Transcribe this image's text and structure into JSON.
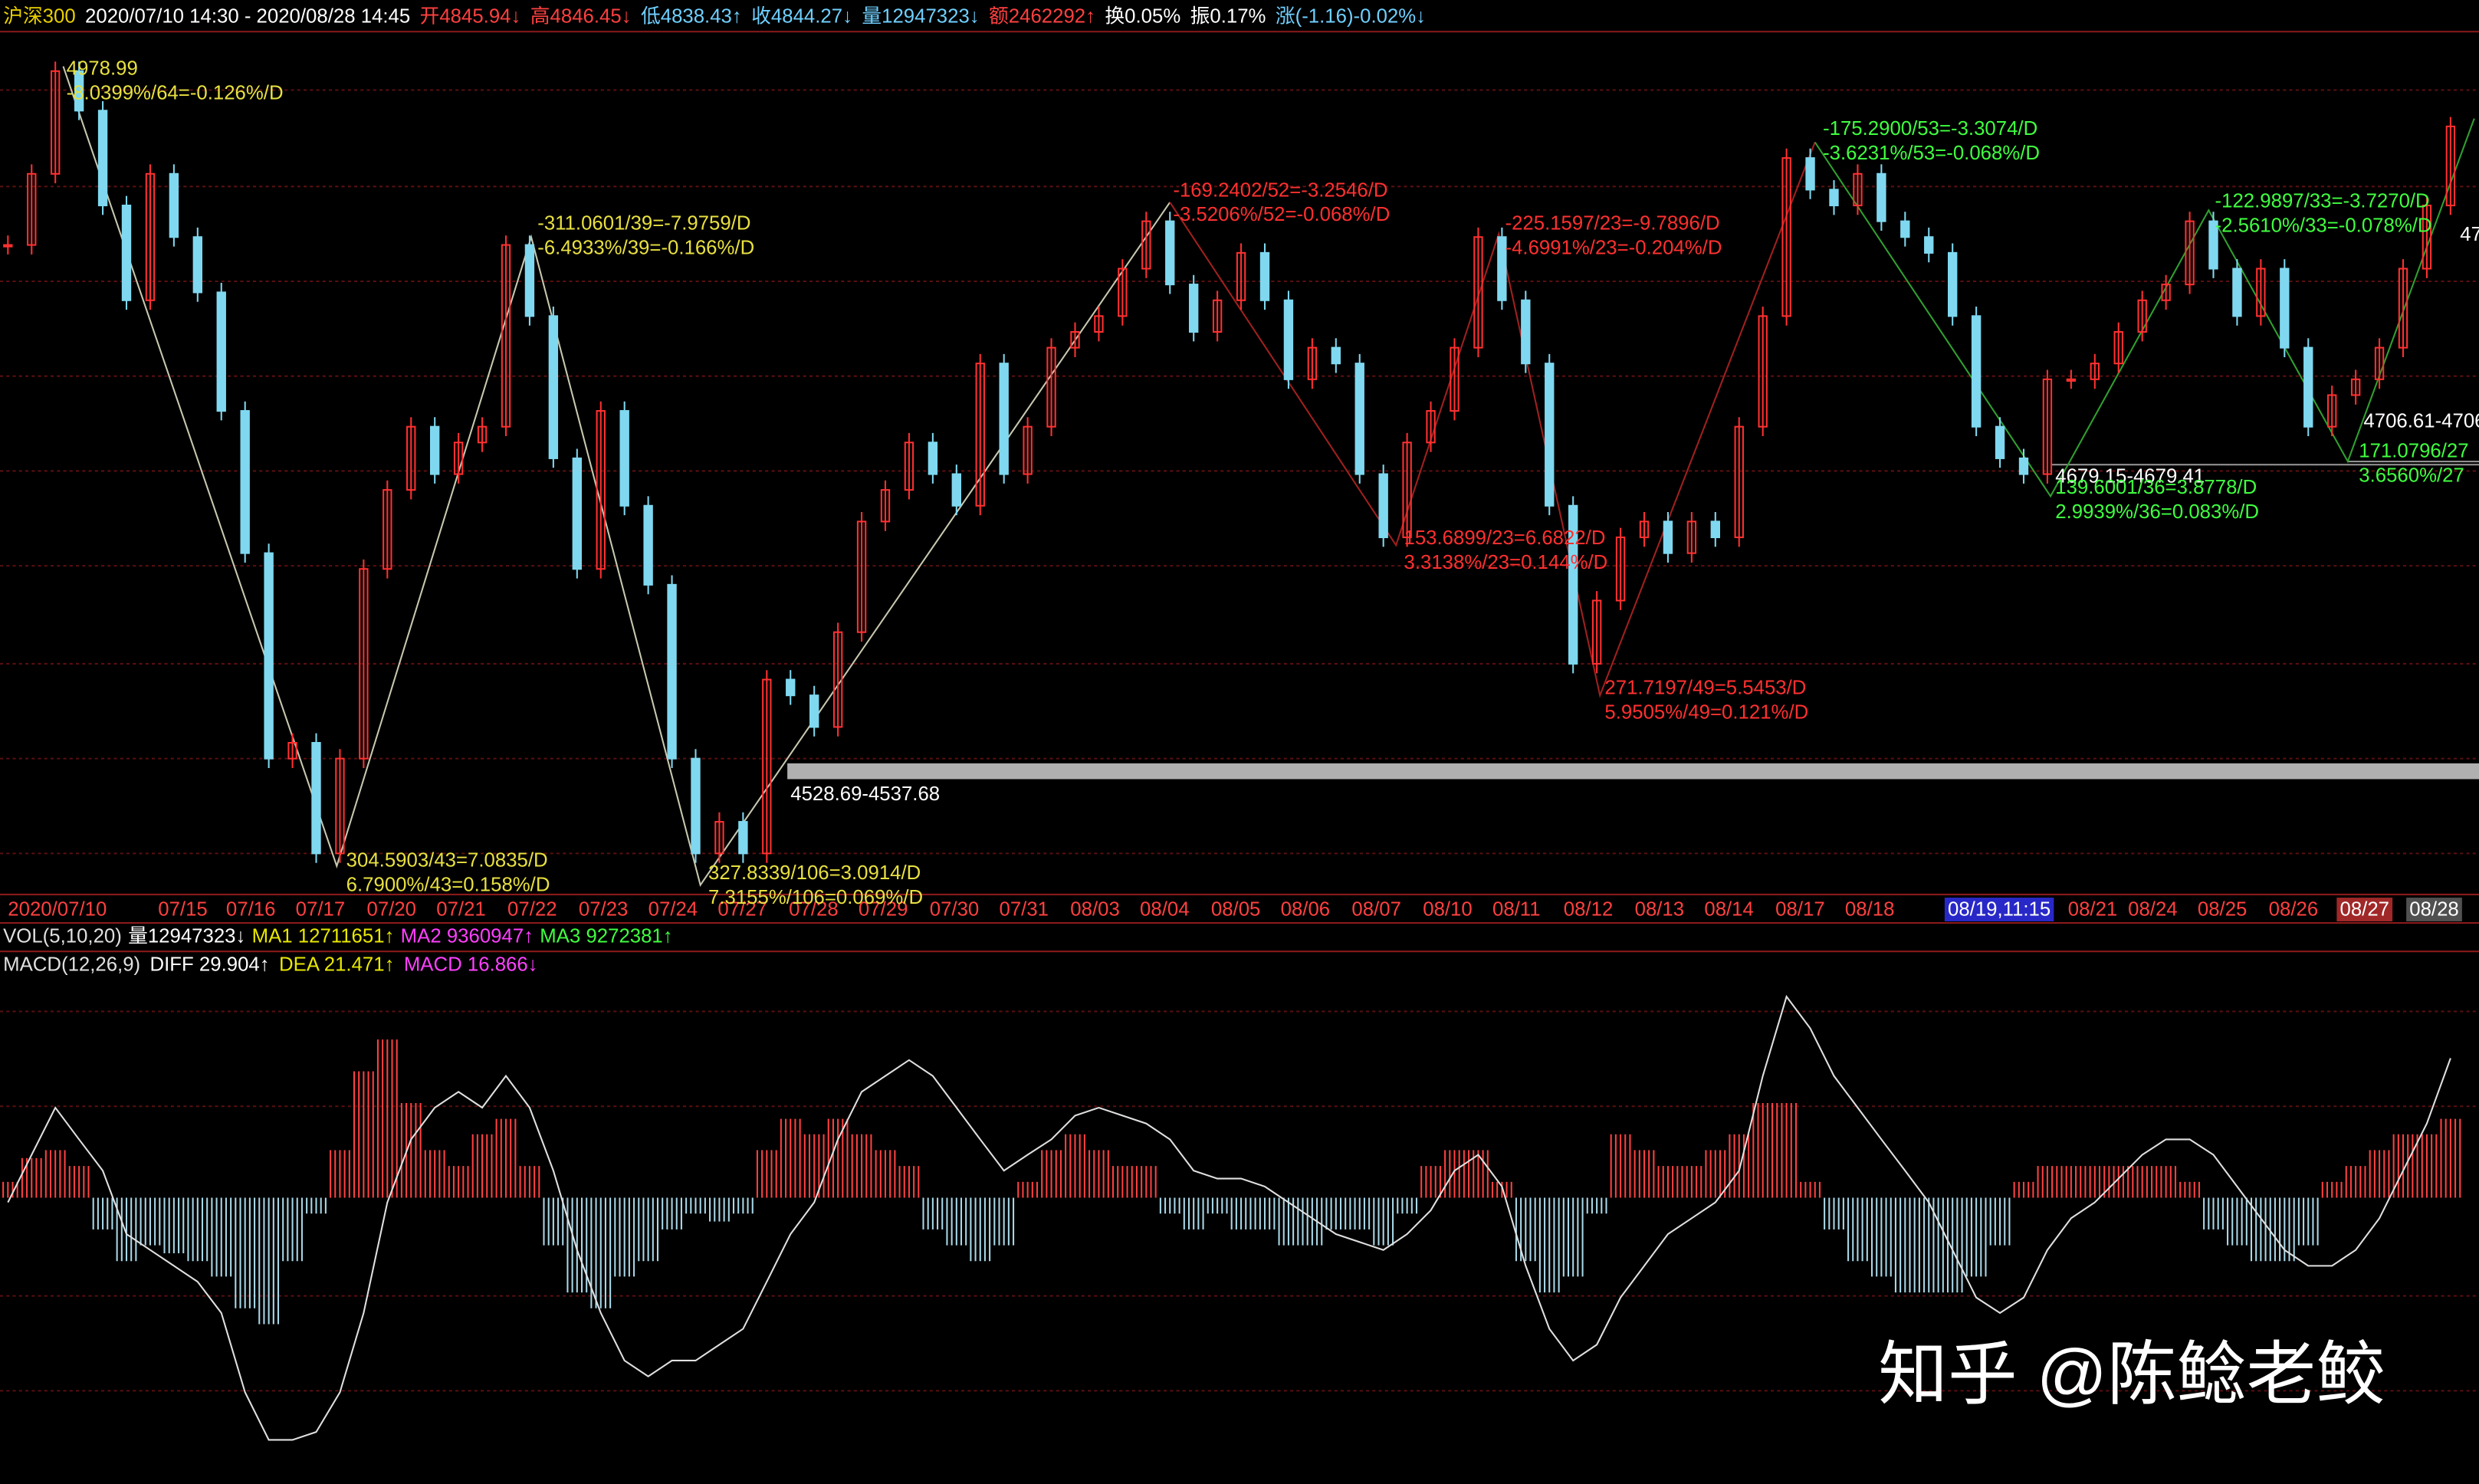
{
  "header": [
    {
      "text": "沪深300",
      "color": "#e8d000"
    },
    {
      "text": "2020/07/10 14:30 - 2020/08/28 14:45",
      "color": "#ffffff"
    },
    {
      "text": "开4845.94↓",
      "color": "#ff4040"
    },
    {
      "text": "高4846.45↓",
      "color": "#ff4040"
    },
    {
      "text": "低4838.43↑",
      "color": "#6fd0ff"
    },
    {
      "text": "收4844.27↓",
      "color": "#6fd0ff"
    },
    {
      "text": "量12947323↓",
      "color": "#6fd0ff"
    },
    {
      "text": "额2462292↑",
      "color": "#ff4040"
    },
    {
      "text": "换0.05%",
      "color": "#ffffff"
    },
    {
      "text": "振0.17%",
      "color": "#ffffff"
    },
    {
      "text": "涨(-1.16)-0.02%↓",
      "color": "#6fd0ff"
    }
  ],
  "chart_data": {
    "type": "candlestick",
    "ylim": [
      4445,
      5000
    ],
    "up_color": "#ff3030",
    "down_color": "#7fd8f0",
    "closes": [
      4855,
      4900,
      4965,
      4940,
      4880,
      4820,
      4900,
      4860,
      4825,
      4750,
      4660,
      4530,
      4540,
      4470,
      4530,
      4650,
      4700,
      4740,
      4710,
      4730,
      4740,
      4855,
      4810,
      4720,
      4650,
      4750,
      4690,
      4640,
      4530,
      4470,
      4490,
      4470,
      4580,
      4570,
      4550,
      4610,
      4680,
      4700,
      4730,
      4710,
      4690,
      4780,
      4710,
      4740,
      4790,
      4800,
      4810,
      4840,
      4870,
      4830,
      4800,
      4820,
      4850,
      4820,
      4770,
      4790,
      4780,
      4710,
      4670,
      4730,
      4750,
      4790,
      4860,
      4820,
      4780,
      4690,
      4590,
      4630,
      4670,
      4680,
      4660,
      4680,
      4670,
      4740,
      4810,
      4910,
      4890,
      4880,
      4900,
      4870,
      4860,
      4850,
      4810,
      4740,
      4720,
      4710,
      4770,
      4770,
      4780,
      4800,
      4820,
      4830,
      4870,
      4840,
      4810,
      4840,
      4790,
      4740,
      4760,
      4770,
      4790,
      4840,
      4880,
      4930
    ],
    "x_labels": [
      {
        "text": "2020/07/10"
      },
      {
        "text": "07/15"
      },
      {
        "text": "07/16"
      },
      {
        "text": "07/17"
      },
      {
        "text": "07/20"
      },
      {
        "text": "07/21"
      },
      {
        "text": "07/22"
      },
      {
        "text": "07/23"
      },
      {
        "text": "07/24"
      },
      {
        "text": "07/27"
      },
      {
        "text": "07/28"
      },
      {
        "text": "07/29"
      },
      {
        "text": "07/30"
      },
      {
        "text": "07/31"
      },
      {
        "text": "08/03"
      },
      {
        "text": "08/04"
      },
      {
        "text": "08/05"
      },
      {
        "text": "08/06"
      },
      {
        "text": "08/07"
      },
      {
        "text": "08/10"
      },
      {
        "text": "08/11"
      },
      {
        "text": "08/12"
      },
      {
        "text": "08/13"
      },
      {
        "text": "08/14"
      },
      {
        "text": "08/17"
      },
      {
        "text": "08/18"
      },
      {
        "text": "08/19,11:15",
        "bg": "#2828c8"
      },
      {
        "text": "08/21"
      },
      {
        "text": "08/24"
      },
      {
        "text": "08/25"
      },
      {
        "text": "08/26"
      },
      {
        "text": "08/27",
        "bg": "#a02828"
      },
      {
        "text": "08/28",
        "bg": "#505050"
      }
    ],
    "macd_panel": {
      "ylim": [
        -60,
        45
      ],
      "diff_color": "#e0e0e0",
      "pos_color": "#ff4040",
      "neg_color": "#a8d8e8",
      "diff": [
        -1.0,
        9.2,
        19.3,
        12.5,
        5.8,
        -7.8,
        -11.2,
        -14.6,
        -18.0,
        -24.7,
        -41.7,
        -51.9,
        -51.9,
        -50.2,
        -41.7,
        -24.7,
        -1.0,
        12.5,
        19.3,
        22.7,
        19.3,
        26.1,
        19.3,
        5.8,
        -11.2,
        -24.7,
        -34.9,
        -38.3,
        -34.9,
        -34.9,
        -31.5,
        -28.1,
        -18.0,
        -7.8,
        -1.0,
        12.5,
        22.7,
        26.1,
        29.5,
        26.1,
        19.3,
        12.5,
        5.8,
        9.2,
        12.5,
        17.6,
        19.3,
        17.6,
        15.9,
        12.5,
        5.8,
        4.1,
        4.1,
        2.4,
        -1.0,
        -4.4,
        -7.8,
        -9.5,
        -11.2,
        -7.8,
        -2.7,
        5.8,
        9.2,
        2.4,
        -14.6,
        -28.1,
        -34.9,
        -31.5,
        -21.4,
        -14.6,
        -7.8,
        -4.4,
        -1.0,
        5.8,
        26.1,
        43.1,
        36.3,
        26.1,
        19.3,
        12.5,
        5.8,
        -1.0,
        -11.2,
        -21.4,
        -24.7,
        -21.4,
        -11.2,
        -4.4,
        -1.0,
        4.1,
        9.2,
        12.5,
        12.5,
        9.2,
        2.4,
        -4.4,
        -11.2,
        -14.6,
        -14.6,
        -11.2,
        -4.4,
        5.8,
        15.9,
        29.9
      ],
      "macd": [
        3.4,
        8.5,
        10.2,
        6.8,
        -6.8,
        -13.6,
        -10.2,
        -11.9,
        -13.6,
        -16.9,
        -23.7,
        -27.1,
        -13.6,
        -3.4,
        10.2,
        27.1,
        33.9,
        20.3,
        10.2,
        6.8,
        13.6,
        16.9,
        6.8,
        -10.2,
        -20.3,
        -23.7,
        -16.9,
        -13.6,
        -6.8,
        -3.4,
        -5.1,
        -3.4,
        10.2,
        16.9,
        13.6,
        16.9,
        13.6,
        10.2,
        6.8,
        -6.8,
        -10.2,
        -13.6,
        -10.2,
        3.4,
        10.2,
        13.6,
        10.2,
        6.8,
        6.8,
        -3.4,
        -6.8,
        -3.4,
        -6.8,
        -6.8,
        -10.2,
        -10.2,
        -6.8,
        -6.8,
        -10.2,
        -3.4,
        6.8,
        10.2,
        10.2,
        3.4,
        -13.6,
        -20.3,
        -16.9,
        -3.4,
        13.6,
        10.2,
        6.8,
        6.8,
        10.2,
        13.6,
        20.3,
        20.3,
        3.4,
        -6.8,
        -13.6,
        -16.9,
        -20.3,
        -20.3,
        -20.3,
        -16.9,
        -10.2,
        3.4,
        6.8,
        6.8,
        6.8,
        6.8,
        6.8,
        6.8,
        3.4,
        -6.8,
        -10.2,
        -13.6,
        -13.6,
        -10.2,
        3.4,
        6.8,
        10.2,
        13.6,
        13.6,
        16.9
      ]
    }
  },
  "vol_legend": [
    {
      "text": "VOL(5,10,20)",
      "color": "#e0e0e0"
    },
    {
      "text": "量12947323↓",
      "color": "#ffffff"
    },
    {
      "text": "MA1 12711651↑",
      "color": "#e8e800"
    },
    {
      "text": "MA2 9360947↑",
      "color": "#ff40ff"
    },
    {
      "text": "MA3 9272381↑",
      "color": "#40ff40"
    }
  ],
  "macd_legend": [
    {
      "text": "MACD(12,26,9)",
      "color": "#e0e0e0"
    },
    {
      "text": "DIFF 29.904↑",
      "color": "#ffffff"
    },
    {
      "text": "DEA 21.471↑",
      "color": "#e8e800"
    },
    {
      "text": "MACD 16.866↓",
      "color": "#ff40ff"
    }
  ],
  "annotations": [
    {
      "lines": [
        "4978.99",
        "-8.0399%/64=-0.126%/D"
      ],
      "color": "#e8e040"
    },
    {
      "lines": [
        "-311.0601/39=-7.9759/D",
        "-6.4933%/39=-0.166%/D"
      ],
      "color": "#e8e040"
    },
    {
      "lines": [
        "304.5903/43=7.0835/D",
        "6.7900%/43=0.158%/D"
      ],
      "color": "#e8e040"
    },
    {
      "lines": [
        "327.8339/106=3.0914/D",
        "7.3155%/106=0.069%/D"
      ],
      "color": "#e8e040"
    },
    {
      "lines": [
        "4528.69-4537.68"
      ],
      "color": "#ffffff"
    },
    {
      "lines": [
        "-169.2402/52=-3.2546/D",
        "-3.5206%/52=-0.068%/D"
      ],
      "color": "#ff3030"
    },
    {
      "lines": [
        "153.6899/23=6.6822/D",
        "3.3138%/23=0.144%/D"
      ],
      "color": "#ff3030"
    },
    {
      "lines": [
        "-225.1597/23=-9.7896/D",
        "-4.6991%/23=-0.204%/D"
      ],
      "color": "#ff3030"
    },
    {
      "lines": [
        "271.7197/49=5.5453/D",
        "5.9505%/49=0.121%/D"
      ],
      "color": "#ff3030"
    },
    {
      "lines": [
        "-175.2900/53=-3.3074/D",
        "-3.6231%/53=-0.068%/D"
      ],
      "color": "#40ff40"
    },
    {
      "lines": [
        "4679.15-4679.41"
      ],
      "color": "#ffffff"
    },
    {
      "lines": [
        "139.6001/36=3.8778/D",
        "2.9939%/36=0.083%/D"
      ],
      "color": "#40ff40"
    },
    {
      "lines": [
        "-122.9897/33=-3.7270/D",
        "-2.5610%/33=-0.078%/D"
      ],
      "color": "#40ff40"
    },
    {
      "lines": [
        "4706.61-4706"
      ],
      "color": "#ffffff"
    },
    {
      "lines": [
        "171.0796/27",
        "3.6560%/27"
      ],
      "color": "#40ff40"
    },
    {
      "lines": [
        "47"
      ],
      "color": "#ffffff"
    }
  ],
  "watermark": "知乎 @陈鲶老鲛"
}
